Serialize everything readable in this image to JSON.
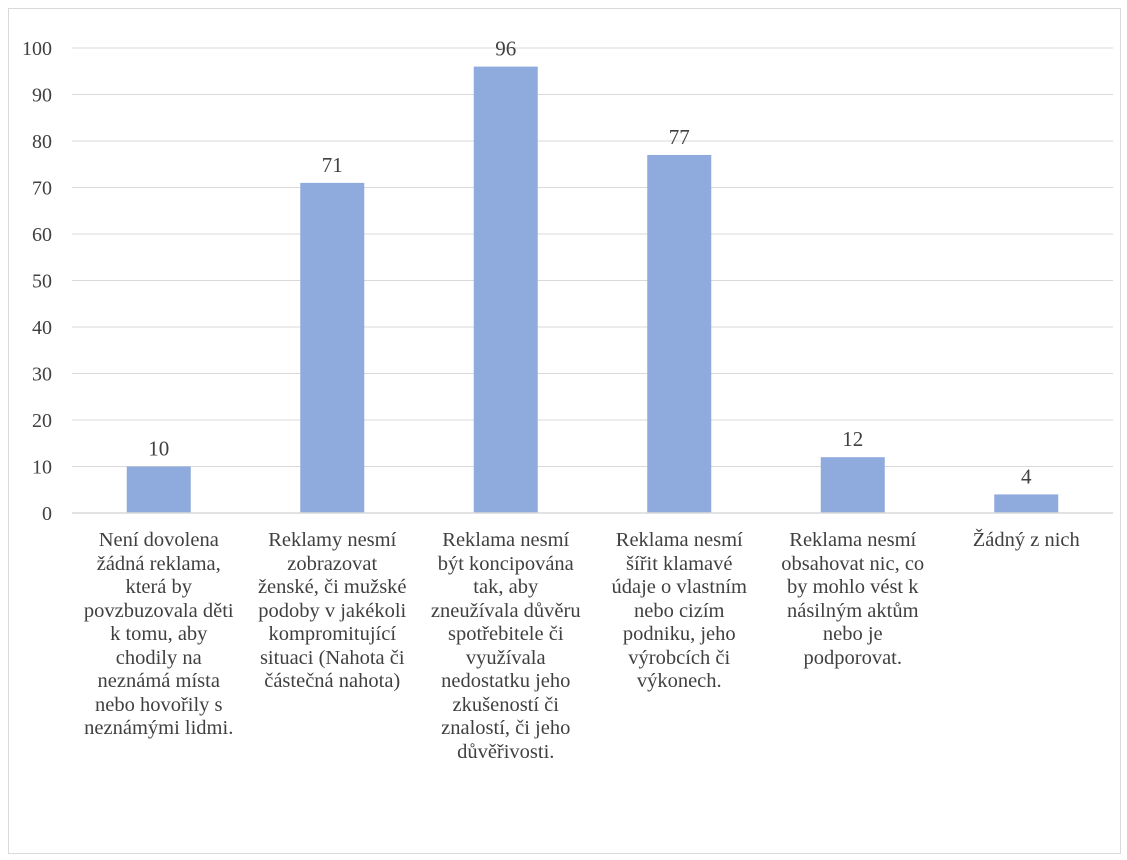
{
  "chart_data": {
    "type": "bar",
    "title": "",
    "xlabel": "",
    "ylabel": "",
    "ylim": [
      0,
      100
    ],
    "yticks": [
      0,
      10,
      20,
      30,
      40,
      50,
      60,
      70,
      80,
      90,
      100
    ],
    "yticks_text": [
      "0",
      "10",
      "20",
      "30",
      "40",
      "50",
      "60",
      "70",
      "80",
      "90",
      "100"
    ],
    "grid": true,
    "bar_color": "#8faadc",
    "categories": [
      "Není dovolena žádná reklama, která by povzbuzovala děti k tomu, aby chodily na neznámá místa nebo hovořily s neznámými lidmi.",
      "Reklamy nesmí zobrazovat ženské, či mužské podoby v jakékoli kompromitující situaci (Nahota či částečná nahota)",
      "Reklama nesmí být koncipována tak, aby zneužívala důvěru spotřebitele či využívala nedostatku jeho zkušeností či znalostí, či jeho důvěřivosti.",
      "Reklama nesmí šířit klamavé údaje o vlastním nebo cizím podniku, jeho výrobcích či výkonech.",
      "Reklama nesmí obsahovat nic, co by mohlo vést k násilným aktům nebo je podporovat.",
      "Žádný z nich"
    ],
    "values": [
      10,
      71,
      96,
      77,
      12,
      4
    ],
    "value_labels": [
      "10",
      "71",
      "96",
      "77",
      "12",
      "4"
    ]
  }
}
